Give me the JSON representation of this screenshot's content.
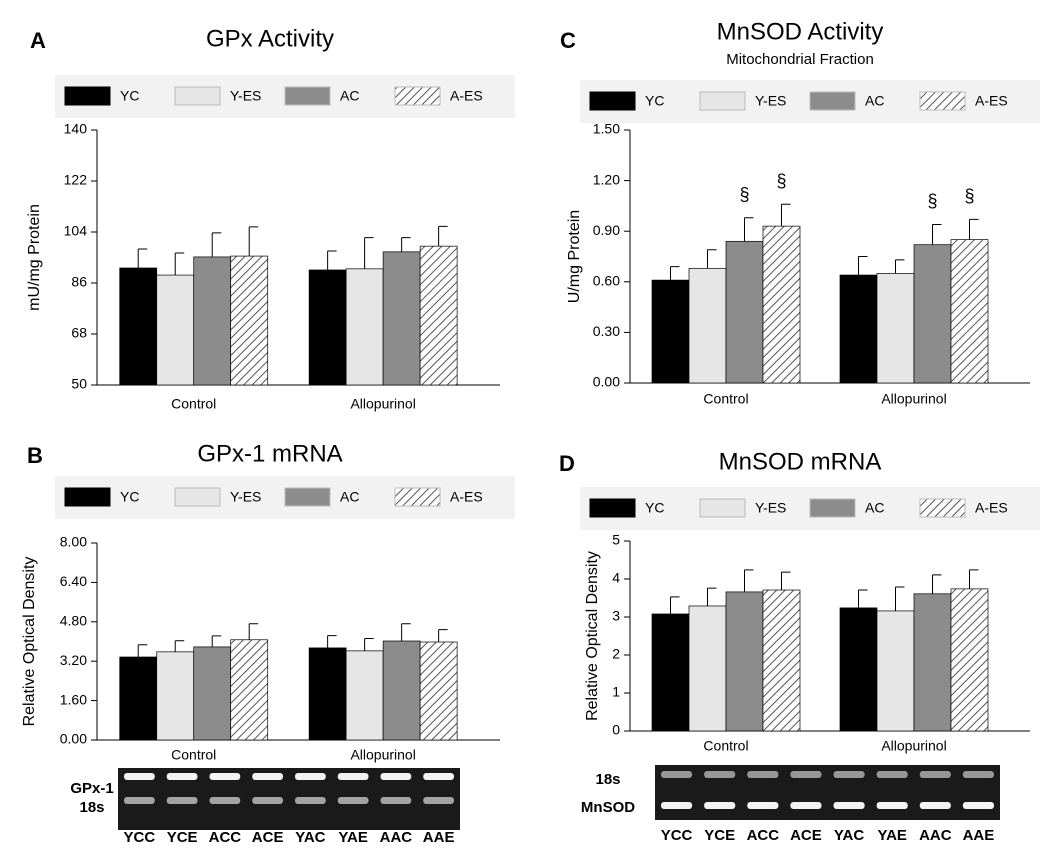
{
  "chart_data": [
    {
      "type": "bar",
      "panel": "A",
      "title": "GPx Activity",
      "ylabel": "mU/mg Protein",
      "categories": [
        "Control",
        "Allopurinol"
      ],
      "series": [
        {
          "name": "YC",
          "color": "#000000",
          "values": [
            91.3,
            90.6
          ],
          "errors": [
            6.7,
            6.7
          ]
        },
        {
          "name": "Y-ES",
          "color": "#e6e6e6",
          "values": [
            88.8,
            91
          ],
          "errors": [
            7.8,
            11
          ]
        },
        {
          "name": "AC",
          "color": "#8c8c8c",
          "values": [
            95.2,
            97
          ],
          "errors": [
            8.5,
            5
          ]
        },
        {
          "name": "A-ES",
          "color": "#ffffff",
          "hatch": true,
          "values": [
            95.5,
            99
          ],
          "errors": [
            10.3,
            7
          ]
        }
      ],
      "ylim": [
        50,
        140
      ],
      "yticks": [
        50,
        68,
        86,
        104,
        122,
        140
      ]
    },
    {
      "type": "bar",
      "panel": "B",
      "title": "GPx-1 mRNA",
      "ylabel": "Relative Optical Density",
      "categories": [
        "Control",
        "Allopurinol"
      ],
      "series": [
        {
          "name": "YC",
          "color": "#000000",
          "values": [
            3.37,
            3.74
          ],
          "errors": [
            0.5,
            0.5
          ]
        },
        {
          "name": "Y-ES",
          "color": "#e6e6e6",
          "values": [
            3.58,
            3.62
          ],
          "errors": [
            0.45,
            0.5
          ]
        },
        {
          "name": "AC",
          "color": "#8c8c8c",
          "values": [
            3.78,
            4.02
          ],
          "errors": [
            0.45,
            0.7
          ]
        },
        {
          "name": "A-ES",
          "color": "#ffffff",
          "hatch": true,
          "values": [
            4.07,
            3.98
          ],
          "errors": [
            0.65,
            0.5
          ]
        }
      ],
      "ylim": [
        0,
        8
      ],
      "yticks": [
        {
          "value": 0,
          "label": "0.00"
        },
        {
          "value": 1.6,
          "label": "1.60"
        },
        {
          "value": 3.2,
          "label": "3.20"
        },
        {
          "value": 4.8,
          "label": "4.80"
        },
        {
          "value": 6.4,
          "label": "6.40"
        },
        {
          "value": 8,
          "label": "8.00"
        }
      ],
      "gel": {
        "row_labels": [
          "GPx-1",
          "18s"
        ],
        "lanes": [
          "YCC",
          "YCE",
          "ACC",
          "ACE",
          "YAC",
          "YAE",
          "AAC",
          "AAE"
        ]
      }
    },
    {
      "type": "bar",
      "panel": "C",
      "title": "MnSOD Activity",
      "subtitle": "Mitochondrial Fraction",
      "ylabel": "U/mg Protein",
      "categories": [
        "Control",
        "Allopurinol"
      ],
      "series": [
        {
          "name": "YC",
          "color": "#000000",
          "values": [
            0.61,
            0.64
          ],
          "errors": [
            0.08,
            0.11
          ]
        },
        {
          "name": "Y-ES",
          "color": "#e6e6e6",
          "values": [
            0.68,
            0.65
          ],
          "errors": [
            0.11,
            0.08
          ]
        },
        {
          "name": "AC",
          "color": "#8c8c8c",
          "values": [
            0.84,
            0.82
          ],
          "errors": [
            0.14,
            0.12
          ],
          "markers": [
            "§",
            "§"
          ]
        },
        {
          "name": "A-ES",
          "color": "#ffffff",
          "hatch": true,
          "values": [
            0.93,
            0.85
          ],
          "errors": [
            0.13,
            0.12
          ],
          "markers": [
            "§",
            "§"
          ]
        }
      ],
      "ylim": [
        0,
        1.5
      ],
      "yticks": [
        {
          "value": 0,
          "label": "0.00"
        },
        {
          "value": 0.3,
          "label": "0.30"
        },
        {
          "value": 0.6,
          "label": "0.60"
        },
        {
          "value": 0.9,
          "label": "0.90"
        },
        {
          "value": 1.2,
          "label": "1.20"
        },
        {
          "value": 1.5,
          "label": "1.50"
        }
      ]
    },
    {
      "type": "bar",
      "panel": "D",
      "title": "MnSOD mRNA",
      "ylabel": "Relative Optical Density",
      "categories": [
        "Control",
        "Allopurinol"
      ],
      "series": [
        {
          "name": "YC",
          "color": "#000000",
          "values": [
            3.08,
            3.24
          ],
          "errors": [
            0.45,
            0.47
          ]
        },
        {
          "name": "Y-ES",
          "color": "#e6e6e6",
          "values": [
            3.29,
            3.16
          ],
          "errors": [
            0.47,
            0.63
          ]
        },
        {
          "name": "AC",
          "color": "#8c8c8c",
          "values": [
            3.66,
            3.61
          ],
          "errors": [
            0.58,
            0.5
          ]
        },
        {
          "name": "A-ES",
          "color": "#ffffff",
          "hatch": true,
          "values": [
            3.71,
            3.74
          ],
          "errors": [
            0.47,
            0.5
          ]
        }
      ],
      "ylim": [
        0,
        5
      ],
      "yticks": [
        0,
        1,
        2,
        3,
        4,
        5
      ],
      "gel": {
        "row_labels": [
          "18s",
          "MnSOD"
        ],
        "lanes": [
          "YCC",
          "YCE",
          "ACC",
          "ACE",
          "YAC",
          "YAE",
          "AAC",
          "AAE"
        ]
      }
    }
  ]
}
